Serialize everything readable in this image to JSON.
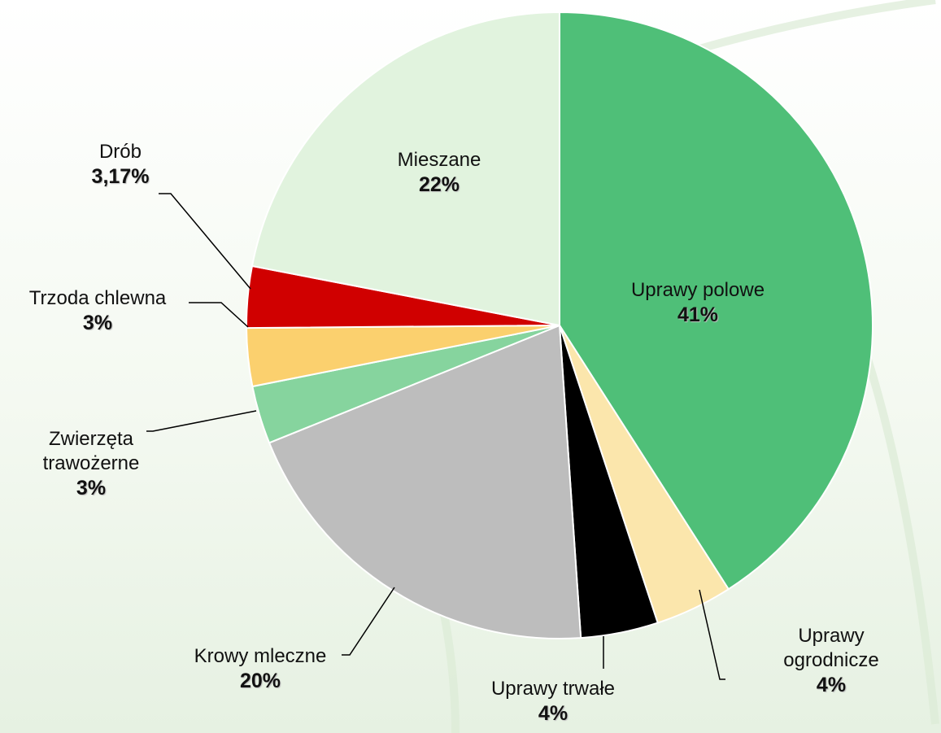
{
  "chart_data": {
    "type": "pie",
    "categories": [
      "Uprawy polowe",
      "Uprawy ogrodnicze",
      "Uprawy trwałe",
      "Krowy mleczne",
      "Zwierzęta trawożerne",
      "Trzoda chlewna",
      "Drób",
      "Mieszane"
    ],
    "values": [
      41,
      4,
      4,
      20,
      3,
      3,
      3.17,
      22
    ],
    "value_labels": [
      "41%",
      "4%",
      "4%",
      "20%",
      "3%",
      "3%",
      "3,17%",
      "22%"
    ],
    "colors": [
      "#4fbf78",
      "#fbe6ac",
      "#000000",
      "#bdbdbd",
      "#86d49e",
      "#fbd06e",
      "#d00000",
      "#e1f3de"
    ]
  }
}
